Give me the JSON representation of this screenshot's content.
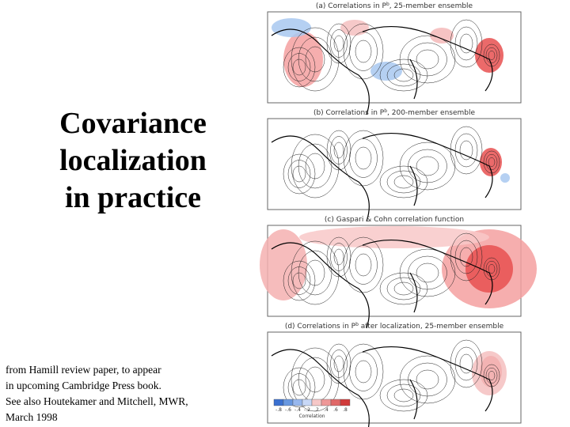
{
  "slide": {
    "title": [
      "Covariance",
      "localization",
      "in practice"
    ],
    "caption": [
      "from Hamill review paper, to appear",
      "in upcoming Cambridge Press book.",
      "See also Houtekamer and Mitchell, MWR,",
      "March 1998"
    ],
    "panels": [
      {
        "prefix": "(a) Correlations in P",
        "sup": "b",
        "rest": ", 25-member ensemble"
      },
      {
        "prefix": "(b) Correlations in P",
        "sup": "b",
        "rest": ", 200-member ensemble"
      },
      {
        "prefix": "(c) Gaspari & Cohn correlation function",
        "sup": "",
        "rest": ""
      },
      {
        "prefix": "(d) Correlations in P",
        "sup": "b",
        "rest": " after localization, 25-member ensemble"
      }
    ],
    "colorbar": {
      "ticks": [
        "-.8",
        "-.6",
        "-.4",
        "-.2",
        ".2",
        ".4",
        ".6",
        ".8"
      ],
      "label": "Correlation"
    }
  }
}
